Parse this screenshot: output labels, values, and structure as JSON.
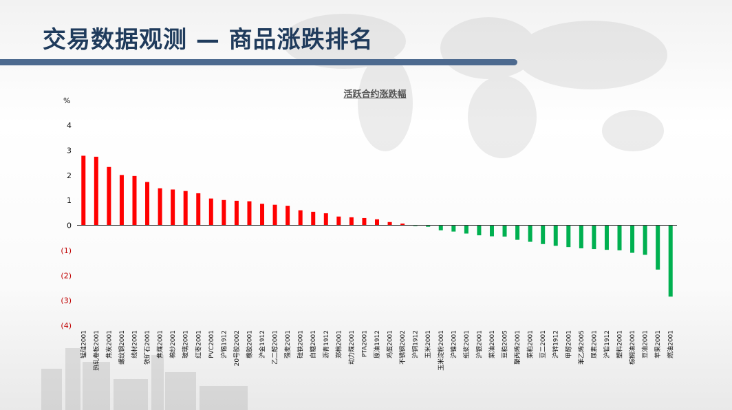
{
  "slide": {
    "title": "交易数据观测 — 商品涨跌排名"
  },
  "colors": {
    "positive": "#ff0000",
    "negative": "#00b050",
    "negative_tick": "#c00000",
    "axis": "#333333",
    "title_bar": "#4d6a8f"
  },
  "chart_data": {
    "type": "bar",
    "title": "活跃合约涨跌幅",
    "unit": "%",
    "ylim": [
      -4,
      4
    ],
    "yticks": [
      {
        "value": 4,
        "label": "4"
      },
      {
        "value": 3,
        "label": "3"
      },
      {
        "value": 2,
        "label": "2"
      },
      {
        "value": 1,
        "label": "1"
      },
      {
        "value": 0,
        "label": "0"
      },
      {
        "value": -1,
        "label": "(1)"
      },
      {
        "value": -2,
        "label": "(2)"
      },
      {
        "value": -3,
        "label": "(3)"
      },
      {
        "value": -4,
        "label": "(4)"
      }
    ],
    "grid": false,
    "categories": [
      "锰硅2001",
      "热轧卷板2001",
      "焦炭2001",
      "螺纹钢2001",
      "线材2001",
      "铁矿石2001",
      "焦煤2001",
      "棉纱2001",
      "玻璃2001",
      "红枣2001",
      "PVC2001",
      "沪锡1912",
      "20号胶2002",
      "橡胶2001",
      "沪金1912",
      "乙二醇2001",
      "强麦2001",
      "硅铁2001",
      "白糖2001",
      "沥青1912",
      "郑棉2001",
      "动力煤2001",
      "PTA2001",
      "原油1912",
      "鸡蛋2001",
      "不锈钢2002",
      "沪铜1912",
      "玉米2001",
      "玉米淀粉2001",
      "沪镍2001",
      "纸浆2001",
      "沪银2001",
      "菜油2001",
      "豆粕2005",
      "聚丙烯2001",
      "菜粕2001",
      "豆二2001",
      "沪锌1912",
      "甲醇2001",
      "苯乙烯2005",
      "尿素2001",
      "沪铅1912",
      "塑料2001",
      "棕榈油2001",
      "豆油2001",
      "苹果2001",
      "燃油2001"
    ],
    "values": [
      2.78,
      2.74,
      2.33,
      2.01,
      1.97,
      1.73,
      1.48,
      1.43,
      1.37,
      1.28,
      1.07,
      1.01,
      0.98,
      0.96,
      0.86,
      0.82,
      0.78,
      0.6,
      0.54,
      0.48,
      0.35,
      0.32,
      0.29,
      0.24,
      0.13,
      0.07,
      -0.03,
      -0.06,
      -0.2,
      -0.25,
      -0.33,
      -0.4,
      -0.44,
      -0.45,
      -0.58,
      -0.66,
      -0.75,
      -0.82,
      -0.87,
      -0.92,
      -0.95,
      -0.98,
      -1.0,
      -1.1,
      -1.18,
      -1.77,
      -2.85
    ]
  }
}
